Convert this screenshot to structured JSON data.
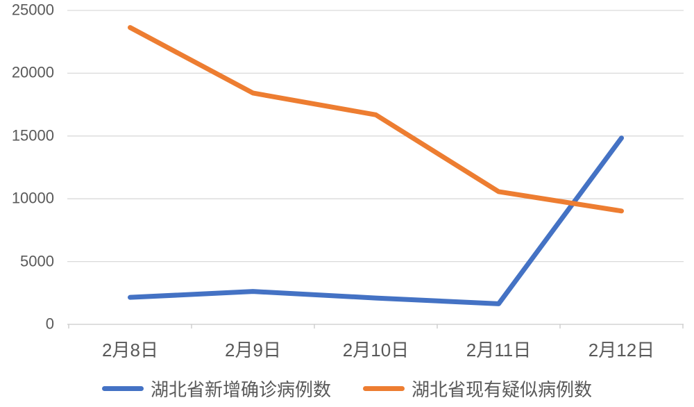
{
  "chart_data": {
    "type": "line",
    "categories": [
      "2月8日",
      "2月9日",
      "2月10日",
      "2月11日",
      "2月12日"
    ],
    "series": [
      {
        "name": "湖北省新增确诊病例数",
        "values": [
          2147,
          2618,
          2097,
          1638,
          14840
        ],
        "color": "#4472C4"
      },
      {
        "name": "湖北省现有疑似病例数",
        "values": [
          23638,
          18420,
          16687,
          10567,
          9028
        ],
        "color": "#ED7D31"
      }
    ],
    "title": "",
    "xlabel": "",
    "ylabel": "",
    "ylim": [
      0,
      25000
    ],
    "y_ticks": [
      0,
      5000,
      10000,
      15000,
      20000,
      25000
    ],
    "y_tick_labels": [
      "0",
      "5000",
      "10000",
      "15000",
      "20000",
      "25000"
    ],
    "grid": true,
    "legend_position": "bottom",
    "line_width": 7
  },
  "colors": {
    "gridline": "#D9D9D9",
    "axis_line": "#C9C9C9",
    "tick_label": "#595959",
    "background": "#FFFFFF"
  }
}
